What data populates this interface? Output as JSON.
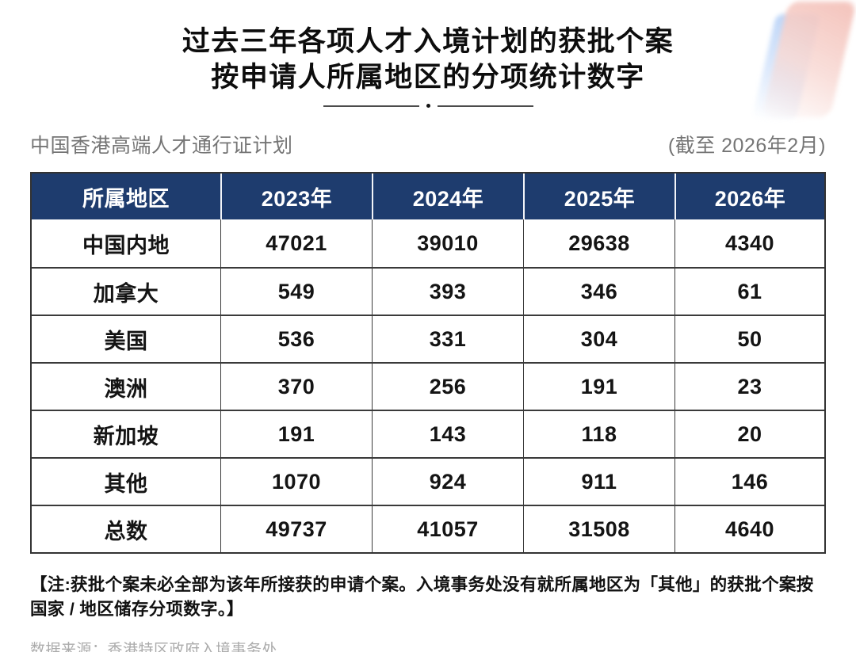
{
  "title": {
    "line1": "过去三年各项人才入境计划的获批个案",
    "line2": "按申请人所属地区的分项统计数字"
  },
  "scheme": {
    "name": "中国香港高端人才通行证计划",
    "as_of": "(截至 2026年2月)"
  },
  "table": {
    "headers": [
      "所属地区",
      "2023年",
      "2024年",
      "2025年",
      "2026年"
    ],
    "rows": [
      {
        "region": "中国内地",
        "values": [
          "47021",
          "39010",
          "29638",
          "4340"
        ]
      },
      {
        "region": "加拿大",
        "values": [
          "549",
          "393",
          "346",
          "61"
        ]
      },
      {
        "region": "美国",
        "values": [
          "536",
          "331",
          "304",
          "50"
        ]
      },
      {
        "region": "澳洲",
        "values": [
          "370",
          "256",
          "191",
          "23"
        ]
      },
      {
        "region": "新加坡",
        "values": [
          "191",
          "143",
          "118",
          "20"
        ]
      },
      {
        "region": "其他",
        "values": [
          "1070",
          "924",
          "911",
          "146"
        ]
      },
      {
        "region": "总数",
        "values": [
          "49737",
          "41057",
          "31508",
          "4640"
        ]
      }
    ]
  },
  "note": "【注:获批个案未必全部为该年所接获的申请个案。入境事务处没有就所属地区为「其他」的获批个案按国家 / 地区储存分项数字。】",
  "source": "数据来源：香港特区政府入境事务处",
  "colors": {
    "header_bg": "#1E3C6E",
    "header_text": "#FFFFFF",
    "body_text": "#141414",
    "border": "#333333",
    "subtitle_text": "#757575",
    "source_text": "#ABABAB",
    "deco_blue": "#B9D2F6",
    "deco_pink": "#F3BFB7"
  },
  "chart_data": {
    "type": "table",
    "title": "过去三年各项人才入境计划的获批个案 按申请人所属地区的分项统计数字",
    "subtitle": "中国香港高端人才通行证计划 (截至 2026年2月)",
    "columns": [
      "所属地区",
      "2023年",
      "2024年",
      "2025年",
      "2026年"
    ],
    "rows": [
      [
        "中国内地",
        47021,
        39010,
        29638,
        4340
      ],
      [
        "加拿大",
        549,
        393,
        346,
        61
      ],
      [
        "美国",
        536,
        331,
        304,
        50
      ],
      [
        "澳洲",
        370,
        256,
        191,
        23
      ],
      [
        "新加坡",
        191,
        143,
        118,
        20
      ],
      [
        "其他",
        1070,
        924,
        911,
        146
      ],
      [
        "总数",
        49737,
        41057,
        31508,
        4640
      ]
    ],
    "note": "获批个案未必全部为该年所接获的申请个案。入境事务处没有就所属地区为「其他」的获批个案按国家 / 地区储存分项数字。",
    "source": "数据来源：香港特区政府入境事务处"
  }
}
